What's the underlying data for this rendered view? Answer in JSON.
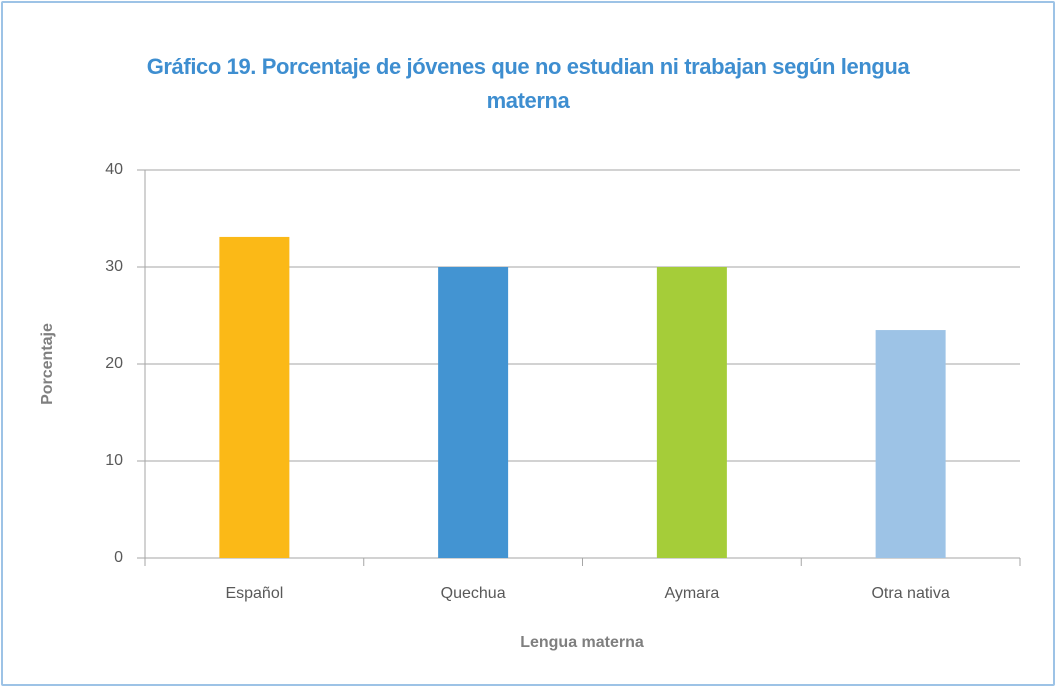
{
  "chart_data": {
    "type": "bar",
    "title": "Gráfico 19. Porcentaje de jóvenes que no estudian ni trabajan según lengua materna",
    "x_label": "Lengua materna",
    "y_label": "Porcentaje",
    "categories": [
      "Español",
      "Quechua",
      "Aymara",
      "Otra nativa"
    ],
    "values": [
      33.1,
      30,
      30,
      23.5
    ],
    "colors": [
      "#fbb917",
      "#4394d2",
      "#a5cd39",
      "#9dc3e6"
    ],
    "ylim": [
      0,
      40
    ],
    "yticks": [
      0,
      10,
      20,
      30,
      40
    ],
    "grid": true
  }
}
